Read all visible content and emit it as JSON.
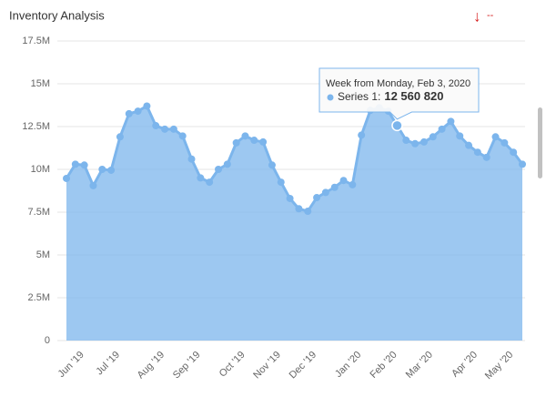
{
  "chart_data": {
    "type": "area",
    "title": "Inventory Analysis",
    "indicator": "↓",
    "change": "--",
    "categories": [
      null,
      null,
      "Jun '19",
      null,
      null,
      null,
      "Jul '19",
      null,
      null,
      null,
      null,
      "Aug '19",
      null,
      null,
      null,
      "Sep '19",
      null,
      null,
      null,
      null,
      "Oct '19",
      null,
      null,
      null,
      "Nov '19",
      null,
      null,
      null,
      "Dec '19",
      null,
      null,
      null,
      null,
      "Jan '20",
      null,
      null,
      null,
      "Feb '20",
      null,
      null,
      null,
      "Mar '20",
      null,
      null,
      null,
      null,
      "Apr '20",
      null,
      null,
      null,
      "May '20",
      null
    ],
    "series": [
      {
        "color": "#7cb5ec",
        "values": [
          9470000,
          10300000,
          10250000,
          9050000,
          10000000,
          9950000,
          11900000,
          13250000,
          13400000,
          13700000,
          12550000,
          12350000,
          12350000,
          11950000,
          10600000,
          9500000,
          9250000,
          10000000,
          10300000,
          11550000,
          11950000,
          11700000,
          11600000,
          10250000,
          9250000,
          8300000,
          7700000,
          7550000,
          8350000,
          8650000,
          8950000,
          9350000,
          9100000,
          12000000,
          13450000,
          13600000,
          13400000,
          12560820,
          11700000,
          11500000,
          11600000,
          11900000,
          12350000,
          12800000,
          11950000,
          11400000,
          11000000,
          10700000,
          11900000,
          11550000,
          11000000,
          10300000
        ],
        "value_labels": [
          null,
          null,
          null,
          null,
          null,
          null,
          null,
          null,
          null,
          null,
          null,
          null,
          null,
          null,
          null,
          null,
          null,
          null,
          null,
          null,
          null,
          null,
          null,
          null,
          null,
          null,
          null,
          null,
          null,
          null,
          null,
          null,
          null,
          null,
          null,
          null,
          null,
          "12 560 820",
          null,
          null,
          null,
          null,
          null,
          null,
          null,
          null,
          null,
          null,
          null,
          null,
          null,
          null
        ]
      }
    ],
    "tooltip": {
      "title": "Week from Monday, Feb 3, 2020",
      "series_label": "Series 1:"
    },
    "ylim": [
      0,
      17500000
    ],
    "yticks": [
      0,
      {
        "value": 2500000,
        "label": "2.5M"
      },
      {
        "value": 5000000,
        "label": "5M"
      },
      {
        "value": 7500000,
        "label": "7.5M"
      },
      {
        "value": 10000000,
        "label": "10M"
      },
      {
        "value": 12500000,
        "label": "12.5M"
      },
      {
        "value": 15000000,
        "label": "15M"
      },
      {
        "value": 17500000,
        "label": "17.5M"
      }
    ],
    "grid": true
  }
}
